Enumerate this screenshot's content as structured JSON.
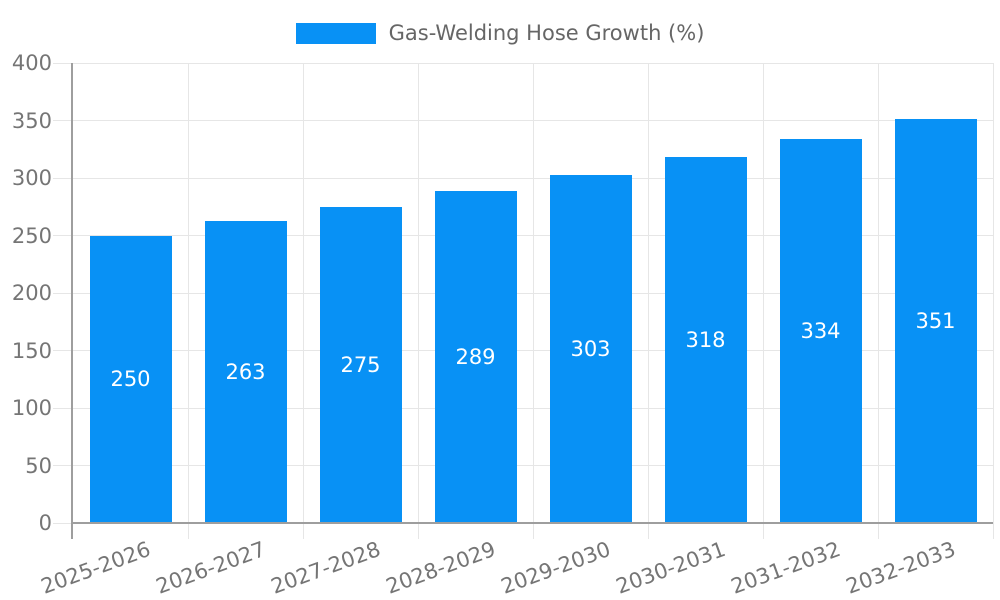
{
  "colors": {
    "background": "#ffffff",
    "bar": "#0891f5",
    "grid": "#e6e6e6",
    "axis": "#9e9e9e",
    "tick_label": "#757575",
    "legend_text": "#666666",
    "value_label": "#ffffff"
  },
  "chart_data": {
    "type": "bar",
    "title": "",
    "legend_label": "Gas-Welding Hose Growth (%)",
    "legend_position": "top-center",
    "categories": [
      "2025-2026",
      "2026-2027",
      "2027-2028",
      "2028-2029",
      "2029-2030",
      "2030-2031",
      "2031-2032",
      "2032-2033"
    ],
    "values": [
      250,
      263,
      275,
      289,
      303,
      318,
      334,
      351
    ],
    "xlabel": "",
    "ylabel": "",
    "ylim": [
      0,
      400
    ],
    "yticks": [
      0,
      50,
      100,
      150,
      200,
      250,
      300,
      350,
      400
    ],
    "grid": true,
    "bar_value_labels_shown": true,
    "x_label_rotation_deg": -20
  }
}
